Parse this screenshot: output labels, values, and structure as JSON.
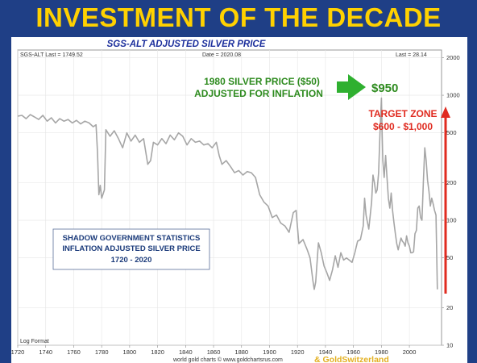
{
  "headline": "INVESTMENT OF THE DECADE",
  "chart_data": {
    "type": "line",
    "title": "SGS-ALT ADJUSTED SILVER PRICE",
    "series": [
      {
        "name": "SGS-ALT",
        "color": "#a6a6a6",
        "points": [
          [
            1720,
            680
          ],
          [
            1723,
            690
          ],
          [
            1726,
            650
          ],
          [
            1729,
            700
          ],
          [
            1732,
            670
          ],
          [
            1735,
            640
          ],
          [
            1738,
            690
          ],
          [
            1741,
            620
          ],
          [
            1744,
            660
          ],
          [
            1747,
            600
          ],
          [
            1750,
            650
          ],
          [
            1753,
            620
          ],
          [
            1756,
            640
          ],
          [
            1759,
            600
          ],
          [
            1762,
            630
          ],
          [
            1765,
            590
          ],
          [
            1768,
            620
          ],
          [
            1771,
            600
          ],
          [
            1774,
            560
          ],
          [
            1776,
            580
          ],
          [
            1777,
            350
          ],
          [
            1778,
            160
          ],
          [
            1779,
            190
          ],
          [
            1780,
            150
          ],
          [
            1782,
            175
          ],
          [
            1783,
            530
          ],
          [
            1786,
            470
          ],
          [
            1789,
            520
          ],
          [
            1792,
            450
          ],
          [
            1795,
            380
          ],
          [
            1798,
            500
          ],
          [
            1801,
            430
          ],
          [
            1804,
            480
          ],
          [
            1807,
            420
          ],
          [
            1810,
            450
          ],
          [
            1813,
            280
          ],
          [
            1815,
            300
          ],
          [
            1817,
            420
          ],
          [
            1820,
            400
          ],
          [
            1823,
            450
          ],
          [
            1826,
            410
          ],
          [
            1829,
            480
          ],
          [
            1832,
            440
          ],
          [
            1835,
            500
          ],
          [
            1838,
            470
          ],
          [
            1841,
            400
          ],
          [
            1844,
            450
          ],
          [
            1847,
            420
          ],
          [
            1850,
            430
          ],
          [
            1853,
            400
          ],
          [
            1856,
            410
          ],
          [
            1859,
            380
          ],
          [
            1862,
            420
          ],
          [
            1864,
            330
          ],
          [
            1866,
            280
          ],
          [
            1869,
            300
          ],
          [
            1872,
            270
          ],
          [
            1875,
            240
          ],
          [
            1878,
            250
          ],
          [
            1881,
            230
          ],
          [
            1884,
            245
          ],
          [
            1887,
            240
          ],
          [
            1890,
            220
          ],
          [
            1893,
            160
          ],
          [
            1896,
            140
          ],
          [
            1899,
            130
          ],
          [
            1902,
            105
          ],
          [
            1905,
            110
          ],
          [
            1908,
            95
          ],
          [
            1911,
            90
          ],
          [
            1914,
            80
          ],
          [
            1917,
            115
          ],
          [
            1919,
            120
          ],
          [
            1921,
            65
          ],
          [
            1924,
            70
          ],
          [
            1927,
            58
          ],
          [
            1929,
            50
          ],
          [
            1931,
            33
          ],
          [
            1932,
            28
          ],
          [
            1933,
            32
          ],
          [
            1935,
            66
          ],
          [
            1937,
            55
          ],
          [
            1939,
            43
          ],
          [
            1941,
            38
          ],
          [
            1943,
            33
          ],
          [
            1945,
            40
          ],
          [
            1947,
            52
          ],
          [
            1949,
            42
          ],
          [
            1951,
            55
          ],
          [
            1953,
            48
          ],
          [
            1955,
            50
          ],
          [
            1957,
            48
          ],
          [
            1959,
            46
          ],
          [
            1961,
            55
          ],
          [
            1963,
            68
          ],
          [
            1965,
            70
          ],
          [
            1967,
            90
          ],
          [
            1968,
            150
          ],
          [
            1969,
            110
          ],
          [
            1971,
            85
          ],
          [
            1973,
            140
          ],
          [
            1974,
            230
          ],
          [
            1975,
            200
          ],
          [
            1976,
            165
          ],
          [
            1977,
            175
          ],
          [
            1978,
            240
          ],
          [
            1979,
            500
          ],
          [
            1980,
            950
          ],
          [
            1980.5,
            520
          ],
          [
            1981,
            300
          ],
          [
            1982,
            220
          ],
          [
            1983,
            330
          ],
          [
            1984,
            220
          ],
          [
            1985,
            150
          ],
          [
            1986,
            125
          ],
          [
            1987,
            165
          ],
          [
            1988,
            120
          ],
          [
            1989,
            95
          ],
          [
            1990,
            78
          ],
          [
            1991,
            65
          ],
          [
            1992,
            58
          ],
          [
            1993,
            65
          ],
          [
            1994,
            72
          ],
          [
            1995,
            68
          ],
          [
            1996,
            66
          ],
          [
            1997,
            62
          ],
          [
            1998,
            75
          ],
          [
            1999,
            66
          ],
          [
            2000,
            62
          ],
          [
            2001,
            55
          ],
          [
            2002,
            55
          ],
          [
            2003,
            56
          ],
          [
            2004,
            78
          ],
          [
            2005,
            83
          ],
          [
            2006,
            125
          ],
          [
            2007,
            130
          ],
          [
            2008,
            105
          ],
          [
            2009,
            100
          ],
          [
            2010,
            200
          ],
          [
            2011,
            380
          ],
          [
            2012,
            300
          ],
          [
            2013,
            210
          ],
          [
            2014,
            170
          ],
          [
            2015,
            130
          ],
          [
            2016,
            150
          ],
          [
            2017,
            135
          ],
          [
            2018,
            120
          ],
          [
            2019,
            110
          ],
          [
            2020,
            28
          ]
        ]
      }
    ],
    "xlim": [
      1720,
      2023
    ],
    "ylim": [
      10,
      2300
    ],
    "y_scale": "log",
    "x_ticks": [
      1720,
      1740,
      1760,
      1780,
      1800,
      1820,
      1840,
      1860,
      1880,
      1900,
      1920,
      1940,
      1960,
      1980,
      2000
    ],
    "y_ticks": [
      10,
      20,
      50,
      100,
      200,
      500,
      1000,
      2000
    ],
    "grid": true,
    "header_left": "SGS-ALT Last = 1749.52",
    "header_center": "Date = 2020.08",
    "header_right": "Last = 28.14",
    "footer_left": "Log Format",
    "source": "world gold charts © www.goldchartsrus.com",
    "brand": "& GoldSwitzerland",
    "annotations": {
      "peak_line1": "1980 SILVER PRICE ($50)",
      "peak_line2": "ADJUSTED FOR INFLATION",
      "peak_value": "$950",
      "target_line1": "TARGET ZONE",
      "target_line2": "$600 - $1,000",
      "box_line1": "SHADOW GOVERNMENT STATISTICS",
      "box_line2": "INFLATION ADJUSTED SILVER PRICE",
      "box_line3": "1720 - 2020"
    },
    "colors": {
      "headline": "#ffd100",
      "title": "#1c2f9c",
      "green": "#2e8b1f",
      "red": "#e02b20",
      "box_text": "#1a3a7a",
      "brand": "#e3b020"
    }
  }
}
